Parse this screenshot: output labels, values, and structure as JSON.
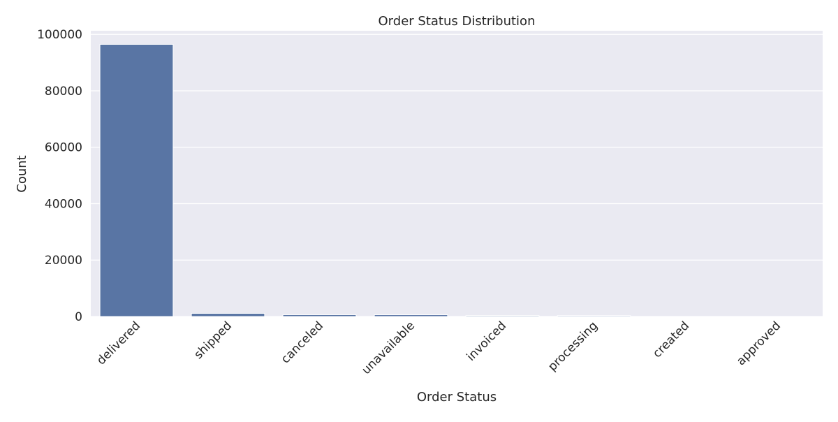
{
  "chart_data": {
    "type": "bar",
    "title": "Order Status Distribution",
    "xlabel": "Order Status",
    "ylabel": "Count",
    "categories": [
      "delivered",
      "shipped",
      "canceled",
      "unavailable",
      "invoiced",
      "processing",
      "created",
      "approved"
    ],
    "values": [
      96478,
      1107,
      625,
      609,
      314,
      301,
      5,
      2
    ],
    "ylim": [
      0,
      101300
    ],
    "yticks": [
      0,
      20000,
      40000,
      60000,
      80000,
      100000
    ],
    "grid": true,
    "legend": "none",
    "colors": {
      "bar": "#5975a4",
      "background": "#eaeaf2",
      "grid": "#ffffff"
    }
  }
}
